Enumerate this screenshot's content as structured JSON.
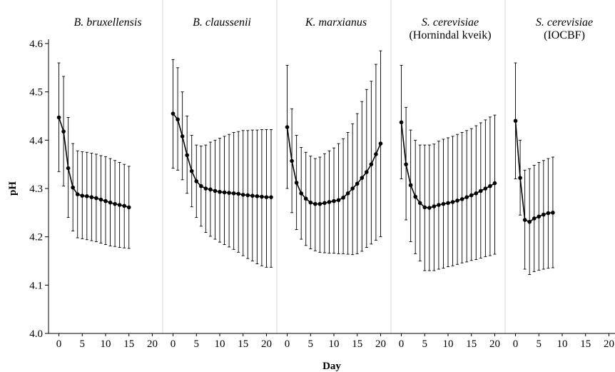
{
  "chart_data": {
    "type": "line",
    "xlabel": "Day",
    "ylabel": "pH",
    "ylim": [
      4.0,
      4.6
    ],
    "yticks": [
      4.0,
      4.1,
      4.2,
      4.3,
      4.4,
      4.5,
      4.6
    ],
    "xlim": [
      -1,
      21
    ],
    "xticks": [
      0,
      5,
      10,
      15,
      20
    ],
    "grid": false,
    "legend": "none",
    "colors": {
      "line": "#000000",
      "separator": "#d9d9d9"
    },
    "panels": [
      {
        "title": [
          "B. bruxellensis"
        ],
        "x": [
          0,
          1,
          2,
          3,
          4,
          5,
          6,
          7,
          8,
          9,
          10,
          11,
          12,
          13,
          14,
          15
        ],
        "y": [
          4.447,
          4.418,
          4.342,
          4.302,
          4.288,
          4.285,
          4.284,
          4.282,
          4.28,
          4.277,
          4.274,
          4.271,
          4.268,
          4.266,
          4.264,
          4.261
        ],
        "err_low": [
          4.335,
          4.305,
          4.24,
          4.212,
          4.198,
          4.196,
          4.194,
          4.192,
          4.19,
          4.187,
          4.184,
          4.181,
          4.18,
          4.178,
          4.177,
          4.176
        ],
        "err_high": [
          4.56,
          4.532,
          4.447,
          4.393,
          4.378,
          4.376,
          4.375,
          4.373,
          4.371,
          4.368,
          4.366,
          4.362,
          4.358,
          4.354,
          4.35,
          4.346
        ]
      },
      {
        "title": [
          "B. claussenii"
        ],
        "x": [
          0,
          1,
          2,
          3,
          4,
          5,
          6,
          7,
          8,
          9,
          10,
          11,
          12,
          13,
          14,
          15,
          16,
          17,
          18,
          19,
          20,
          21
        ],
        "y": [
          4.455,
          4.443,
          4.408,
          4.369,
          4.336,
          4.315,
          4.305,
          4.3,
          4.298,
          4.295,
          4.293,
          4.292,
          4.291,
          4.29,
          4.289,
          4.287,
          4.286,
          4.285,
          4.284,
          4.283,
          4.282,
          4.282
        ],
        "err_low": [
          4.342,
          4.338,
          4.318,
          4.29,
          4.262,
          4.24,
          4.222,
          4.209,
          4.201,
          4.195,
          4.189,
          4.184,
          4.179,
          4.174,
          4.168,
          4.161,
          4.155,
          4.15,
          4.144,
          4.14,
          4.137,
          4.137
        ],
        "err_high": [
          4.567,
          4.55,
          4.5,
          4.45,
          4.41,
          4.39,
          4.388,
          4.39,
          4.396,
          4.4,
          4.404,
          4.408,
          4.412,
          4.416,
          4.418,
          4.42,
          4.42,
          4.421,
          4.421,
          4.422,
          4.422,
          4.422
        ]
      },
      {
        "title": [
          "K. marxianus"
        ],
        "x": [
          0,
          1,
          2,
          3,
          4,
          5,
          6,
          7,
          8,
          9,
          10,
          11,
          12,
          13,
          14,
          15,
          16,
          17,
          18,
          19,
          20
        ],
        "y": [
          4.427,
          4.357,
          4.312,
          4.29,
          4.279,
          4.271,
          4.268,
          4.268,
          4.27,
          4.272,
          4.274,
          4.276,
          4.281,
          4.29,
          4.3,
          4.31,
          4.322,
          4.334,
          4.35,
          4.371,
          4.393
        ],
        "err_low": [
          4.3,
          4.25,
          4.215,
          4.195,
          4.182,
          4.175,
          4.171,
          4.168,
          4.167,
          4.166,
          4.166,
          4.165,
          4.165,
          4.164,
          4.163,
          4.165,
          4.17,
          4.178,
          4.185,
          4.193,
          4.2
        ],
        "err_high": [
          4.555,
          4.465,
          4.41,
          4.385,
          4.375,
          4.367,
          4.362,
          4.365,
          4.372,
          4.378,
          4.384,
          4.393,
          4.403,
          4.416,
          4.434,
          4.455,
          4.48,
          4.505,
          4.522,
          4.557,
          4.585
        ]
      },
      {
        "title": [
          "S. cerevisiae",
          "(Hornindal kveik)"
        ],
        "x": [
          0,
          1,
          2,
          3,
          4,
          5,
          6,
          7,
          8,
          9,
          10,
          11,
          12,
          13,
          14,
          15,
          16,
          17,
          18,
          19,
          20
        ],
        "y": [
          4.437,
          4.35,
          4.307,
          4.283,
          4.27,
          4.261,
          4.26,
          4.263,
          4.266,
          4.268,
          4.27,
          4.272,
          4.275,
          4.278,
          4.282,
          4.286,
          4.29,
          4.295,
          4.3,
          4.305,
          4.311
        ],
        "err_low": [
          4.32,
          4.235,
          4.19,
          4.165,
          4.15,
          4.13,
          4.13,
          4.13,
          4.133,
          4.135,
          4.138,
          4.14,
          4.143,
          4.146,
          4.148,
          4.151,
          4.153,
          4.156,
          4.159,
          4.161,
          4.164
        ],
        "err_high": [
          4.555,
          4.468,
          4.421,
          4.4,
          4.39,
          4.39,
          4.39,
          4.392,
          4.398,
          4.402,
          4.405,
          4.408,
          4.412,
          4.416,
          4.42,
          4.424,
          4.43,
          4.436,
          4.442,
          4.448,
          4.452
        ]
      },
      {
        "title": [
          "S. cerevisiae",
          "(IOCBF)"
        ],
        "x": [
          0,
          1,
          2,
          3,
          4,
          5,
          6,
          7,
          8
        ],
        "y": [
          4.44,
          4.322,
          4.235,
          4.231,
          4.238,
          4.242,
          4.246,
          4.249,
          4.25
        ],
        "err_low": [
          4.32,
          4.245,
          4.133,
          4.122,
          4.128,
          4.131,
          4.133,
          4.135,
          4.136
        ],
        "err_high": [
          4.56,
          4.4,
          4.338,
          4.341,
          4.348,
          4.354,
          4.358,
          4.362,
          4.365
        ]
      }
    ]
  }
}
